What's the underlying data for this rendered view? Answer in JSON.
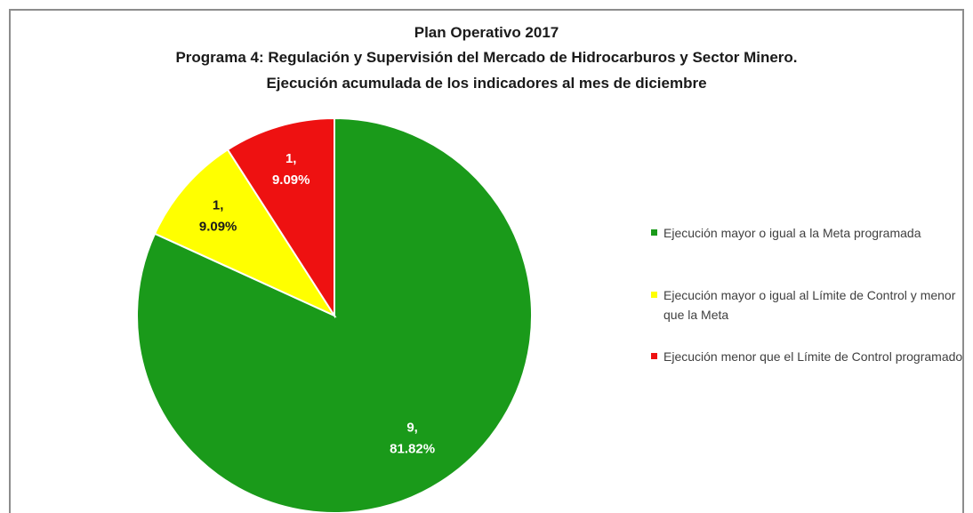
{
  "chart_data": {
    "type": "pie",
    "title": "Plan Operativo 2017",
    "subtitle": "Programa 4:  Regulación y Supervisión del Mercado de Hidrocarburos y Sector Minero.",
    "subtitle2": "Ejecución acumulada de los indicadores al mes de diciembre",
    "legend_position": "right",
    "slices": [
      {
        "label": "Ejecución mayor o igual a la Meta programada",
        "value": 9,
        "percent": "81.82%",
        "color": "#1a9a1a",
        "label_color": "#ffffff"
      },
      {
        "label": "Ejecución mayor o igual al Límite de Control y menor que la Meta",
        "value": 1,
        "percent": "9.09%",
        "color": "#ffff00",
        "label_color": "#1a1a1a"
      },
      {
        "label": "Ejecución menor que el Límite de Control programado",
        "value": 1,
        "percent": "9.09%",
        "color": "#ee1111",
        "label_color": "#ffffff"
      }
    ],
    "data_labels": [
      {
        "line1": "9,",
        "line2": "81.82%"
      },
      {
        "line1": "1,",
        "line2": "9.09%"
      },
      {
        "line1": "1,",
        "line2": "9.09%"
      }
    ]
  }
}
